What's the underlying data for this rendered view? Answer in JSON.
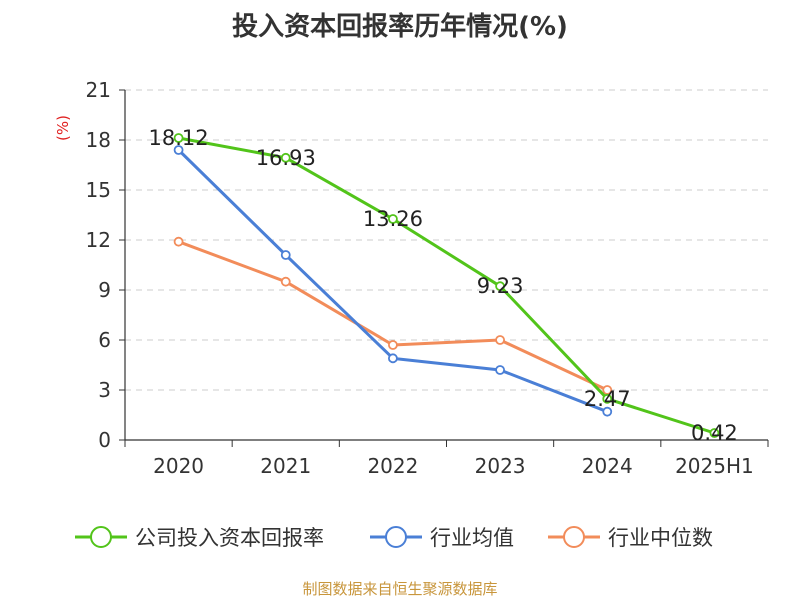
{
  "title": "投入资本回报率历年情况(%)",
  "source": "制图数据来自恒生聚源数据库",
  "colors": {
    "company": "#52c41a",
    "avg": "#4a7fd6",
    "median": "#f28c5a",
    "axis": "#333333",
    "grid": "#cccccc",
    "unit": "#e02020",
    "source": "#c8963c"
  },
  "chart_data": {
    "type": "line",
    "title": "投入资本回报率历年情况(%)",
    "unit_label": "(%)",
    "categories": [
      "2020",
      "2021",
      "2022",
      "2023",
      "2024",
      "2025H1"
    ],
    "ylim": [
      0,
      21
    ],
    "yticks": [
      0,
      3,
      6,
      9,
      12,
      15,
      18,
      21
    ],
    "grid": true,
    "legend_position": "bottom",
    "series": [
      {
        "name": "公司投入资本回报率",
        "color": "#52c41a",
        "values": [
          18.12,
          16.93,
          13.26,
          9.23,
          2.47,
          0.42
        ],
        "labels": [
          "18.12",
          "16.93",
          "13.26",
          "9.23",
          "2.47",
          "0.42"
        ]
      },
      {
        "name": "行业均值",
        "color": "#4a7fd6",
        "values": [
          17.4,
          11.1,
          4.9,
          4.2,
          1.7,
          null
        ]
      },
      {
        "name": "行业中位数",
        "color": "#f28c5a",
        "values": [
          11.9,
          9.5,
          5.7,
          6.0,
          3.0,
          null
        ]
      }
    ]
  }
}
